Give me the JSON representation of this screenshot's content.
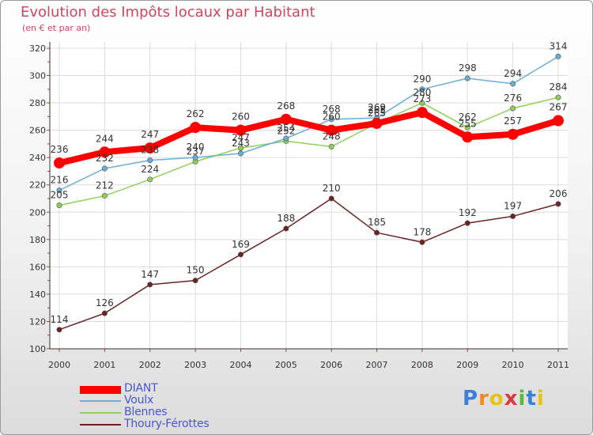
{
  "title": "Evolution des Impôts locaux par Habitant",
  "subtitle": "(en € et par an)",
  "logo_text": "Proxiti",
  "logo_colors": [
    "#3a7fd8",
    "#f08a1c",
    "#e8c21a",
    "#d63a3a",
    "#5cb83a",
    "#3a7fd8",
    "#e8c21a"
  ],
  "chart_data": {
    "type": "line",
    "x": [
      2000,
      2001,
      2002,
      2003,
      2004,
      2005,
      2006,
      2007,
      2008,
      2009,
      2010,
      2011
    ],
    "ylim": [
      100,
      320
    ],
    "yticks": [
      100,
      120,
      140,
      160,
      180,
      200,
      220,
      240,
      260,
      280,
      300,
      320
    ],
    "grid": true,
    "legend_position": "bottom-left",
    "series": [
      {
        "name": "DIANT",
        "color": "#ff0000",
        "emphasis": true,
        "values": [
          236,
          244,
          247,
          262,
          260,
          268,
          260,
          265,
          273,
          255,
          257,
          267
        ],
        "labels": [
          "236",
          "244",
          "247",
          "262",
          "260",
          "268",
          "260",
          "265",
          "273",
          "255",
          "257",
          "267"
        ]
      },
      {
        "name": "Voulx",
        "color": "#6aaed6",
        "values": [
          216,
          232,
          238,
          240,
          243,
          254,
          268,
          269,
          290,
          298,
          294,
          314
        ],
        "labels": [
          "216",
          "232",
          "238",
          "240",
          "243",
          "254",
          "268",
          "269",
          "290",
          "298",
          "294",
          "314"
        ]
      },
      {
        "name": "Blennes",
        "color": "#8fd05a",
        "values": [
          205,
          212,
          224,
          237,
          247,
          252,
          248,
          265,
          280,
          262,
          276,
          284
        ],
        "labels": [
          "205",
          "212",
          "224",
          "237",
          "247",
          "252",
          "248",
          "265",
          "280",
          "262",
          "276",
          "284"
        ]
      },
      {
        "name": "Thoury-Férottes",
        "color": "#6b2222",
        "values": [
          114,
          126,
          147,
          150,
          169,
          188,
          210,
          185,
          178,
          192,
          197,
          206
        ],
        "labels": [
          "114",
          "126",
          "147",
          "150",
          "169",
          "188",
          "210",
          "185",
          "178",
          "192",
          "197",
          "206"
        ]
      }
    ]
  }
}
